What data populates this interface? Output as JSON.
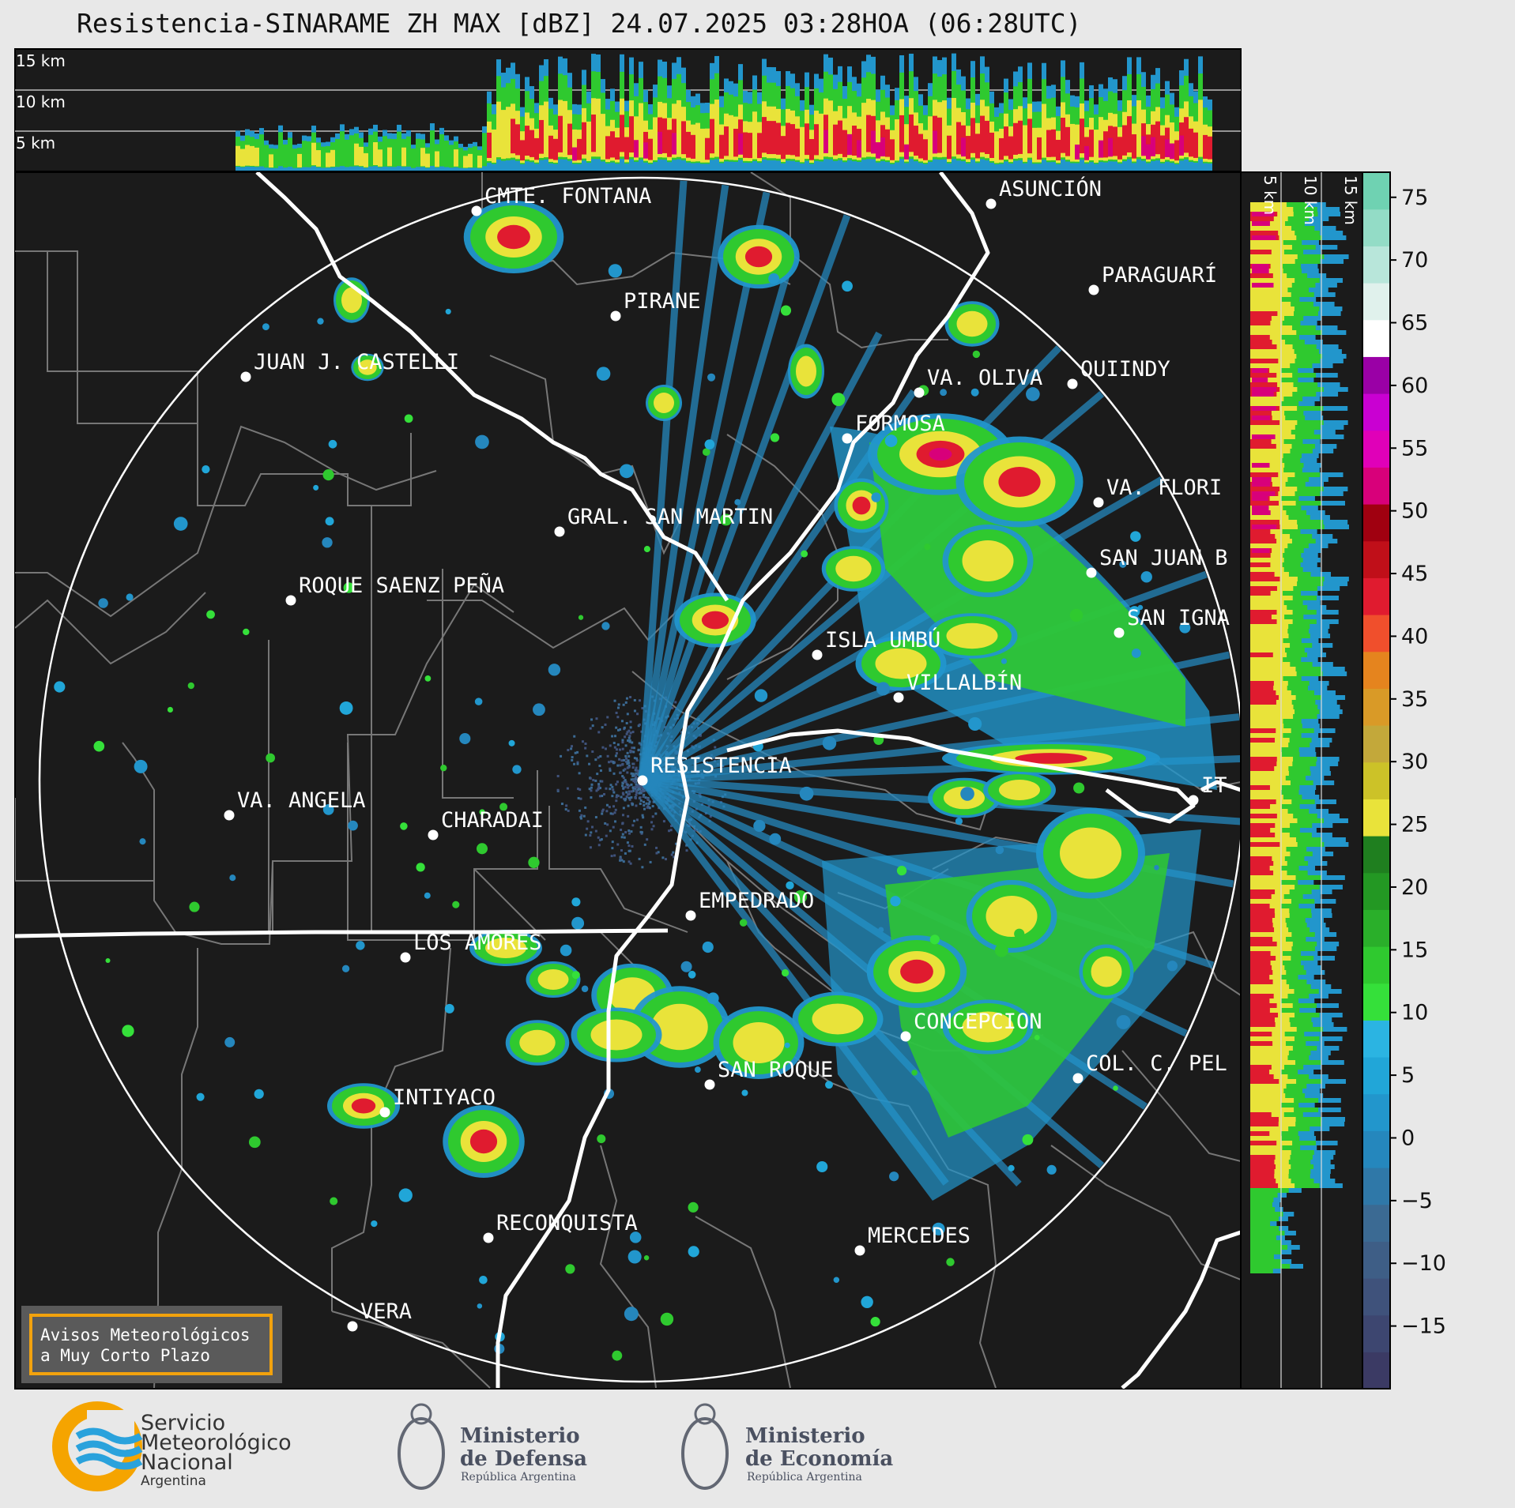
{
  "title": "Resistencia-SINARAME ZH MAX [dBZ] 24.07.2025 03:28HOA (06:28UTC)",
  "height_panel": {
    "top_labels": [
      "15 km",
      "10 km",
      "5 km"
    ],
    "side_labels": [
      "5 km",
      "10 km",
      "15 km"
    ]
  },
  "colorbar": {
    "ticks": [
      75,
      70,
      65,
      60,
      55,
      50,
      45,
      40,
      35,
      30,
      25,
      20,
      15,
      10,
      5,
      0,
      -5,
      -10,
      -15
    ],
    "tick_labels": [
      "75",
      "70",
      "65",
      "60",
      "55",
      "50",
      "45",
      "40",
      "35",
      "30",
      "25",
      "20",
      "15",
      "10",
      "5",
      "0",
      "−5",
      "−10",
      "−15"
    ],
    "range": [
      -20,
      77
    ],
    "colors": [
      "#3b3a64",
      "#3d4670",
      "#3f527b",
      "#3e5e86",
      "#3b6a93",
      "#2f78a8",
      "#2587bd",
      "#2296cc",
      "#21a6d8",
      "#2bb4e2",
      "#35e03a",
      "#2fc92f",
      "#2aaf2a",
      "#239823",
      "#1f7f1f",
      "#e9e33a",
      "#ccc228",
      "#c3a83a",
      "#d99a27",
      "#e5841e",
      "#f04f2c",
      "#e01b2f",
      "#c00f19",
      "#a00010",
      "#d8007a",
      "#e000b8",
      "#c900d2",
      "#9a00a6",
      "#ffffff",
      "#e0f1ec",
      "#b8e6da",
      "#93dcc6",
      "#6fd2b2"
    ]
  },
  "places": [
    {
      "name": "CMTE. FONTANA",
      "label": "CMTE. FONTANA"
    },
    {
      "name": "ASUNCIÓN",
      "label": "ASUNCIÓN"
    },
    {
      "name": "PARAGUARÍ",
      "label": "PARAGUARÍ"
    },
    {
      "name": "PIRANE",
      "label": "PIRANE"
    },
    {
      "name": "JUAN J. CASTELLI",
      "label": "JUAN J. CASTELLI"
    },
    {
      "name": "VA. OLIVA",
      "label": "VA. OLIVA"
    },
    {
      "name": "QUIINDY",
      "label": "QUIINDY"
    },
    {
      "name": "FORMOSA",
      "label": "FORMOSA"
    },
    {
      "name": "VA. FLORIDA",
      "label": "VA. FLORI"
    },
    {
      "name": "GRAL. SAN MARTIN",
      "label": "GRAL. SAN MARTIN"
    },
    {
      "name": "SAN JUAN B",
      "label": "SAN JUAN B"
    },
    {
      "name": "ROQUE SAENZ PEÑA",
      "label": "ROQUE SAENZ PEÑA"
    },
    {
      "name": "SAN IGNACIO",
      "label": "SAN IGNA"
    },
    {
      "name": "ISLA UMBÚ",
      "label": "ISLA UMBÚ"
    },
    {
      "name": "VILLALBÍN",
      "label": "VILLALBÍN"
    },
    {
      "name": "RESISTENCIA",
      "label": "RESISTENCIA"
    },
    {
      "name": "VA. ANGELA",
      "label": "VA. ANGELA"
    },
    {
      "name": "CHARADAI",
      "label": "CHARADAI"
    },
    {
      "name": "EMPEDRADO",
      "label": "EMPEDRADO"
    },
    {
      "name": "LOS AMORES",
      "label": "LOS AMORES"
    },
    {
      "name": "CONCEPCION",
      "label": "CONCEPCION"
    },
    {
      "name": "SAN ROQUE",
      "label": "SAN ROQUE"
    },
    {
      "name": "COL. C. PEL",
      "label": "COL. C. PEL"
    },
    {
      "name": "INTIYACO",
      "label": "INTIYACO"
    },
    {
      "name": "RECONQUISTA",
      "label": "RECONQUISTA"
    },
    {
      "name": "MERCEDES",
      "label": "MERCEDES"
    },
    {
      "name": "VERA",
      "label": "VERA"
    },
    {
      "name": "IT",
      "label": "IT"
    }
  ],
  "notice": {
    "line1": "Avisos Meteorológicos",
    "line2": "a Muy Corto Plazo",
    "border_color": "#f2a20d"
  },
  "logos": {
    "smn": {
      "line1": "Servicio",
      "line2": "Meteorológico",
      "line3": "Nacional",
      "line4": "Argentina"
    },
    "defensa": {
      "line1": "Ministerio",
      "line2": "de Defensa",
      "line3": "República Argentina"
    },
    "economia": {
      "line1": "Ministerio",
      "line2": "de Economía",
      "line3": "República Argentina"
    }
  },
  "colors": {
    "map_background": "#1b1b1b",
    "border": "#888888",
    "river": "#ffffff",
    "range_ring": "#ffffff"
  }
}
